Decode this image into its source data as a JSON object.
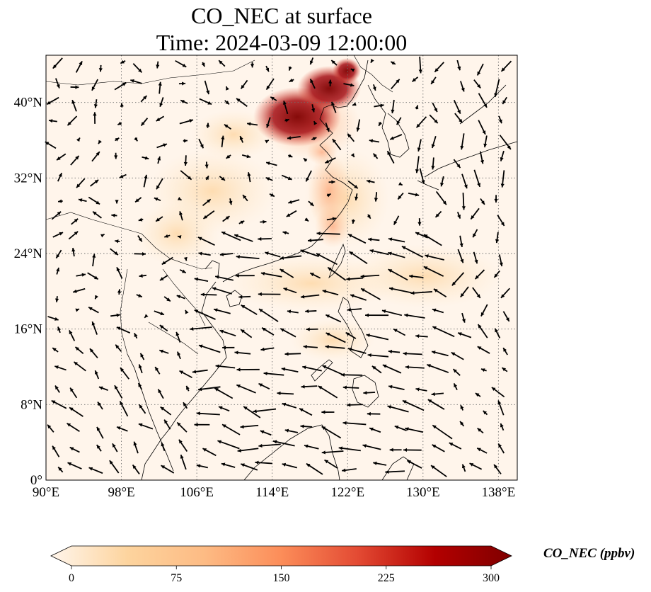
{
  "title": {
    "line1": "CO_NEC at surface",
    "line2": "Time: 2024-03-09 12:00:00"
  },
  "map": {
    "lon_range": [
      90,
      140
    ],
    "lat_range": [
      0,
      45
    ],
    "lon_ticks": [
      {
        "value": 90,
        "label": "90°E"
      },
      {
        "value": 98,
        "label": "98°E"
      },
      {
        "value": 106,
        "label": "106°E"
      },
      {
        "value": 114,
        "label": "114°E"
      },
      {
        "value": 122,
        "label": "122°E"
      },
      {
        "value": 130,
        "label": "130°E"
      },
      {
        "value": 138,
        "label": "138°E"
      }
    ],
    "lat_ticks": [
      {
        "value": 0,
        "label": "0°"
      },
      {
        "value": 8,
        "label": "8°N"
      },
      {
        "value": 16,
        "label": "16°N"
      },
      {
        "value": 24,
        "label": "24°N"
      },
      {
        "value": 32,
        "label": "32°N"
      },
      {
        "value": 40,
        "label": "40°N"
      }
    ],
    "grid": true,
    "background_color": "#fff5eb"
  },
  "colorbar": {
    "label": "CO_NEC (ppbv)",
    "min": 0,
    "max": 300,
    "ticks": [
      {
        "value": 0,
        "label": "0"
      },
      {
        "value": 75,
        "label": "75"
      },
      {
        "value": 150,
        "label": "150"
      },
      {
        "value": 225,
        "label": "225"
      },
      {
        "value": 300,
        "label": "300"
      }
    ],
    "colors": [
      "#fff5eb",
      "#fdd49e",
      "#fdbb84",
      "#fc8d59",
      "#e34a33",
      "#b30000",
      "#7f0000"
    ]
  }
}
